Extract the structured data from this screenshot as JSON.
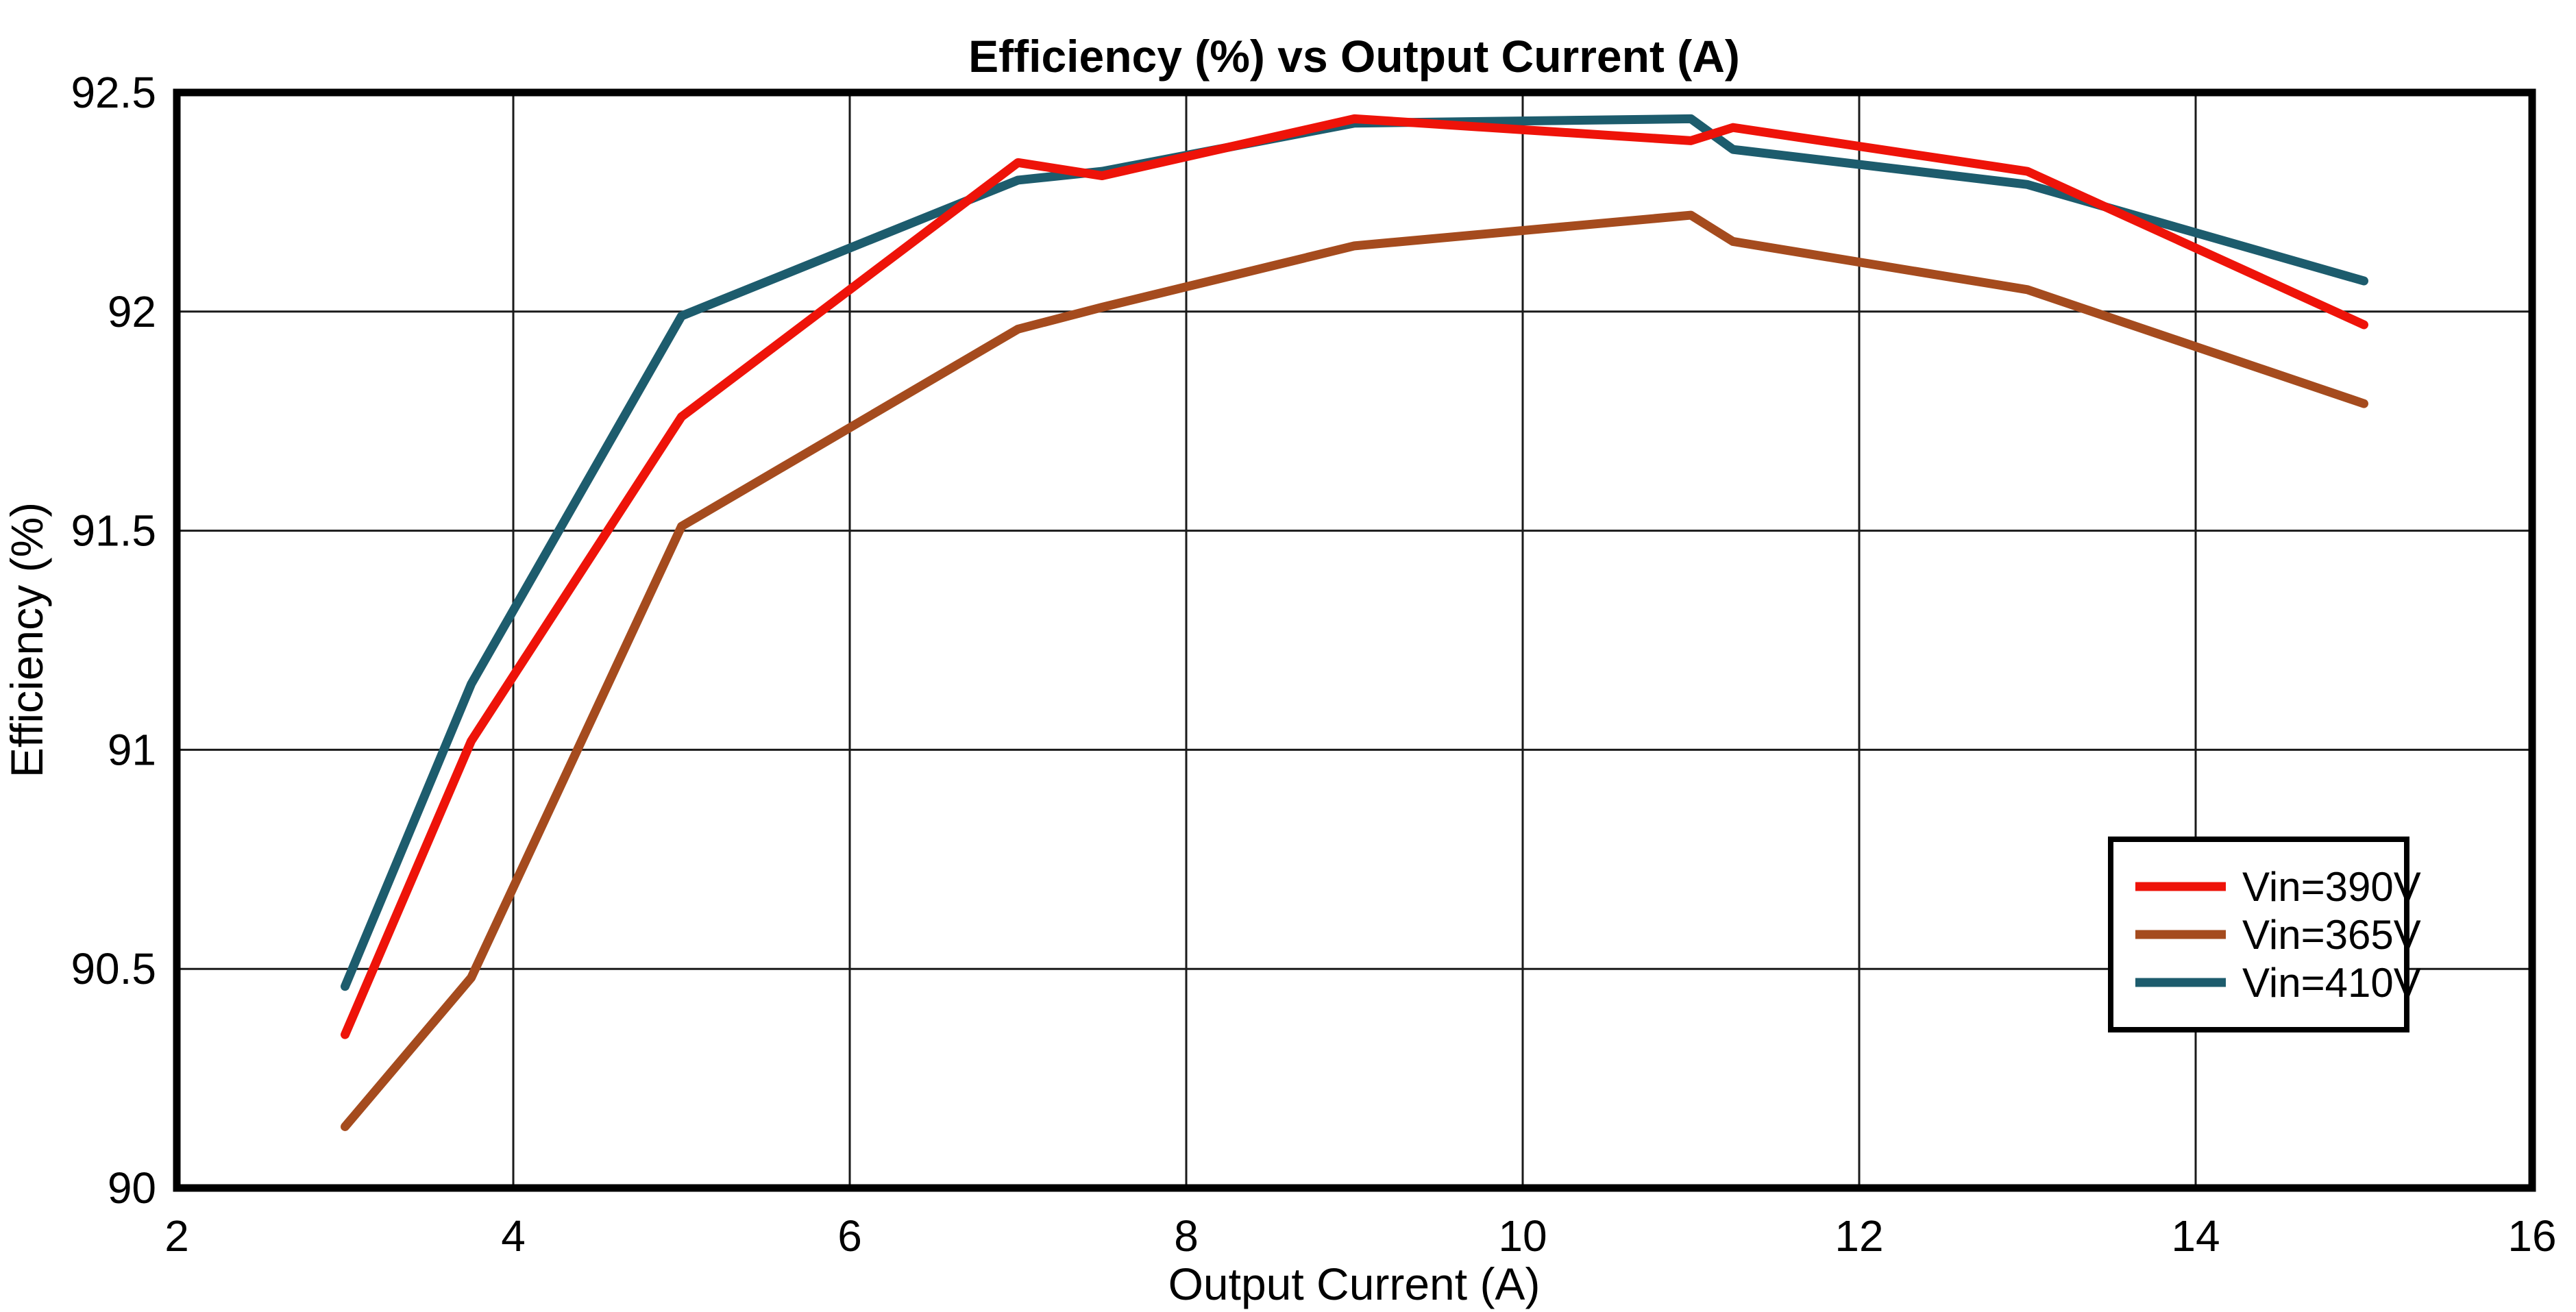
{
  "chart_data": {
    "type": "line",
    "title": "Efficiency (%) vs Output Current (A)",
    "xlabel": "Output Current (A)",
    "ylabel": "Efficiency (%)",
    "xlim": [
      2,
      16
    ],
    "ylim": [
      90,
      92.5
    ],
    "x_ticks": [
      2,
      4,
      6,
      8,
      10,
      12,
      14,
      16
    ],
    "y_ticks": [
      90,
      90.5,
      91,
      91.5,
      92,
      92.5
    ],
    "y_tick_labels": [
      "90",
      "90.5",
      "91",
      "91.5",
      "92",
      "92.5"
    ],
    "grid": true,
    "legend_position": "lower right",
    "x": [
      3,
      3.75,
      5,
      7,
      7.5,
      9,
      11,
      11.25,
      13,
      15
    ],
    "series": [
      {
        "name": "Vin=390V",
        "color": "#ee1309",
        "values": [
          90.35,
          91.02,
          91.76,
          92.34,
          92.31,
          92.44,
          92.39,
          92.42,
          92.32,
          91.97
        ]
      },
      {
        "name": "Vin=365V",
        "color": "#a54b1e",
        "values": [
          90.14,
          90.48,
          91.51,
          91.96,
          92.01,
          92.15,
          92.22,
          92.16,
          92.05,
          91.79
        ]
      },
      {
        "name": "Vin=410V",
        "color": "#1d5c6d",
        "values": [
          90.46,
          91.15,
          91.99,
          92.3,
          92.32,
          92.43,
          92.44,
          92.37,
          92.29,
          92.07
        ]
      }
    ],
    "colors": {
      "grid": "#1a1a1a",
      "border": "#000000",
      "background": "#ffffff"
    }
  }
}
